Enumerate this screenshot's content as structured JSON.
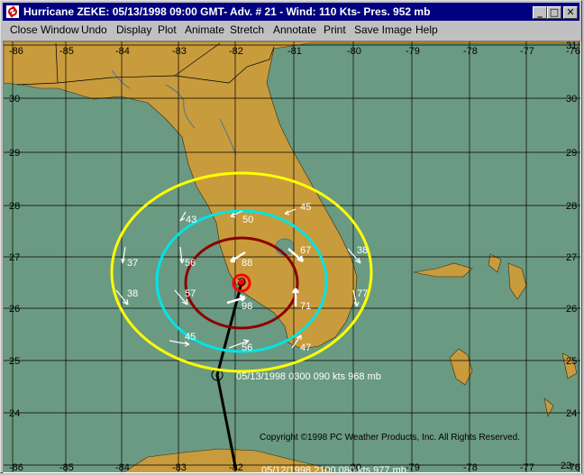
{
  "window": {
    "title": "Hurricane ZEKE: 05/13/1998 09:00 GMT- Adv. # 21 - Wind: 110 Kts- Pres. 952 mb",
    "minimize_label": "_",
    "maximize_label": "□",
    "close_label": "✕"
  },
  "menu": {
    "items": [
      "Close Window",
      "Undo",
      "Display",
      "Plot",
      "Animate",
      "Stretch",
      "Annotate",
      "Print",
      "Save Image",
      "Help"
    ]
  },
  "map": {
    "colors": {
      "ocean": "#6b9a82",
      "land": "#c89b3c",
      "grid": "#000000",
      "outer_ring": "#ffff00",
      "mid_ring": "#00e5e5",
      "inner_ring": "#8b0000",
      "eye_ring": "#ff0000",
      "track": "#000000"
    },
    "lon_labels": [
      "-86",
      "-85",
      "-84",
      "-83",
      "-82",
      "-81",
      "-80",
      "-79",
      "-78",
      "-77",
      "-76"
    ],
    "lat_labels": [
      "31",
      "30",
      "29",
      "28",
      "27",
      "26",
      "25",
      "24",
      "23"
    ],
    "wind_obs": [
      "43",
      "50",
      "45",
      "37",
      "56",
      "88",
      "67",
      "38",
      "38",
      "57",
      "71",
      "77",
      "98",
      "45",
      "56",
      "47"
    ],
    "track_labels": [
      "05/13/1998 0300 090  kts 968 mb",
      "05/12/1998 2100 080  kts 977 mb"
    ],
    "copyright": "Copyright ©1998 PC Weather Products, Inc. All Rights Reserved."
  }
}
